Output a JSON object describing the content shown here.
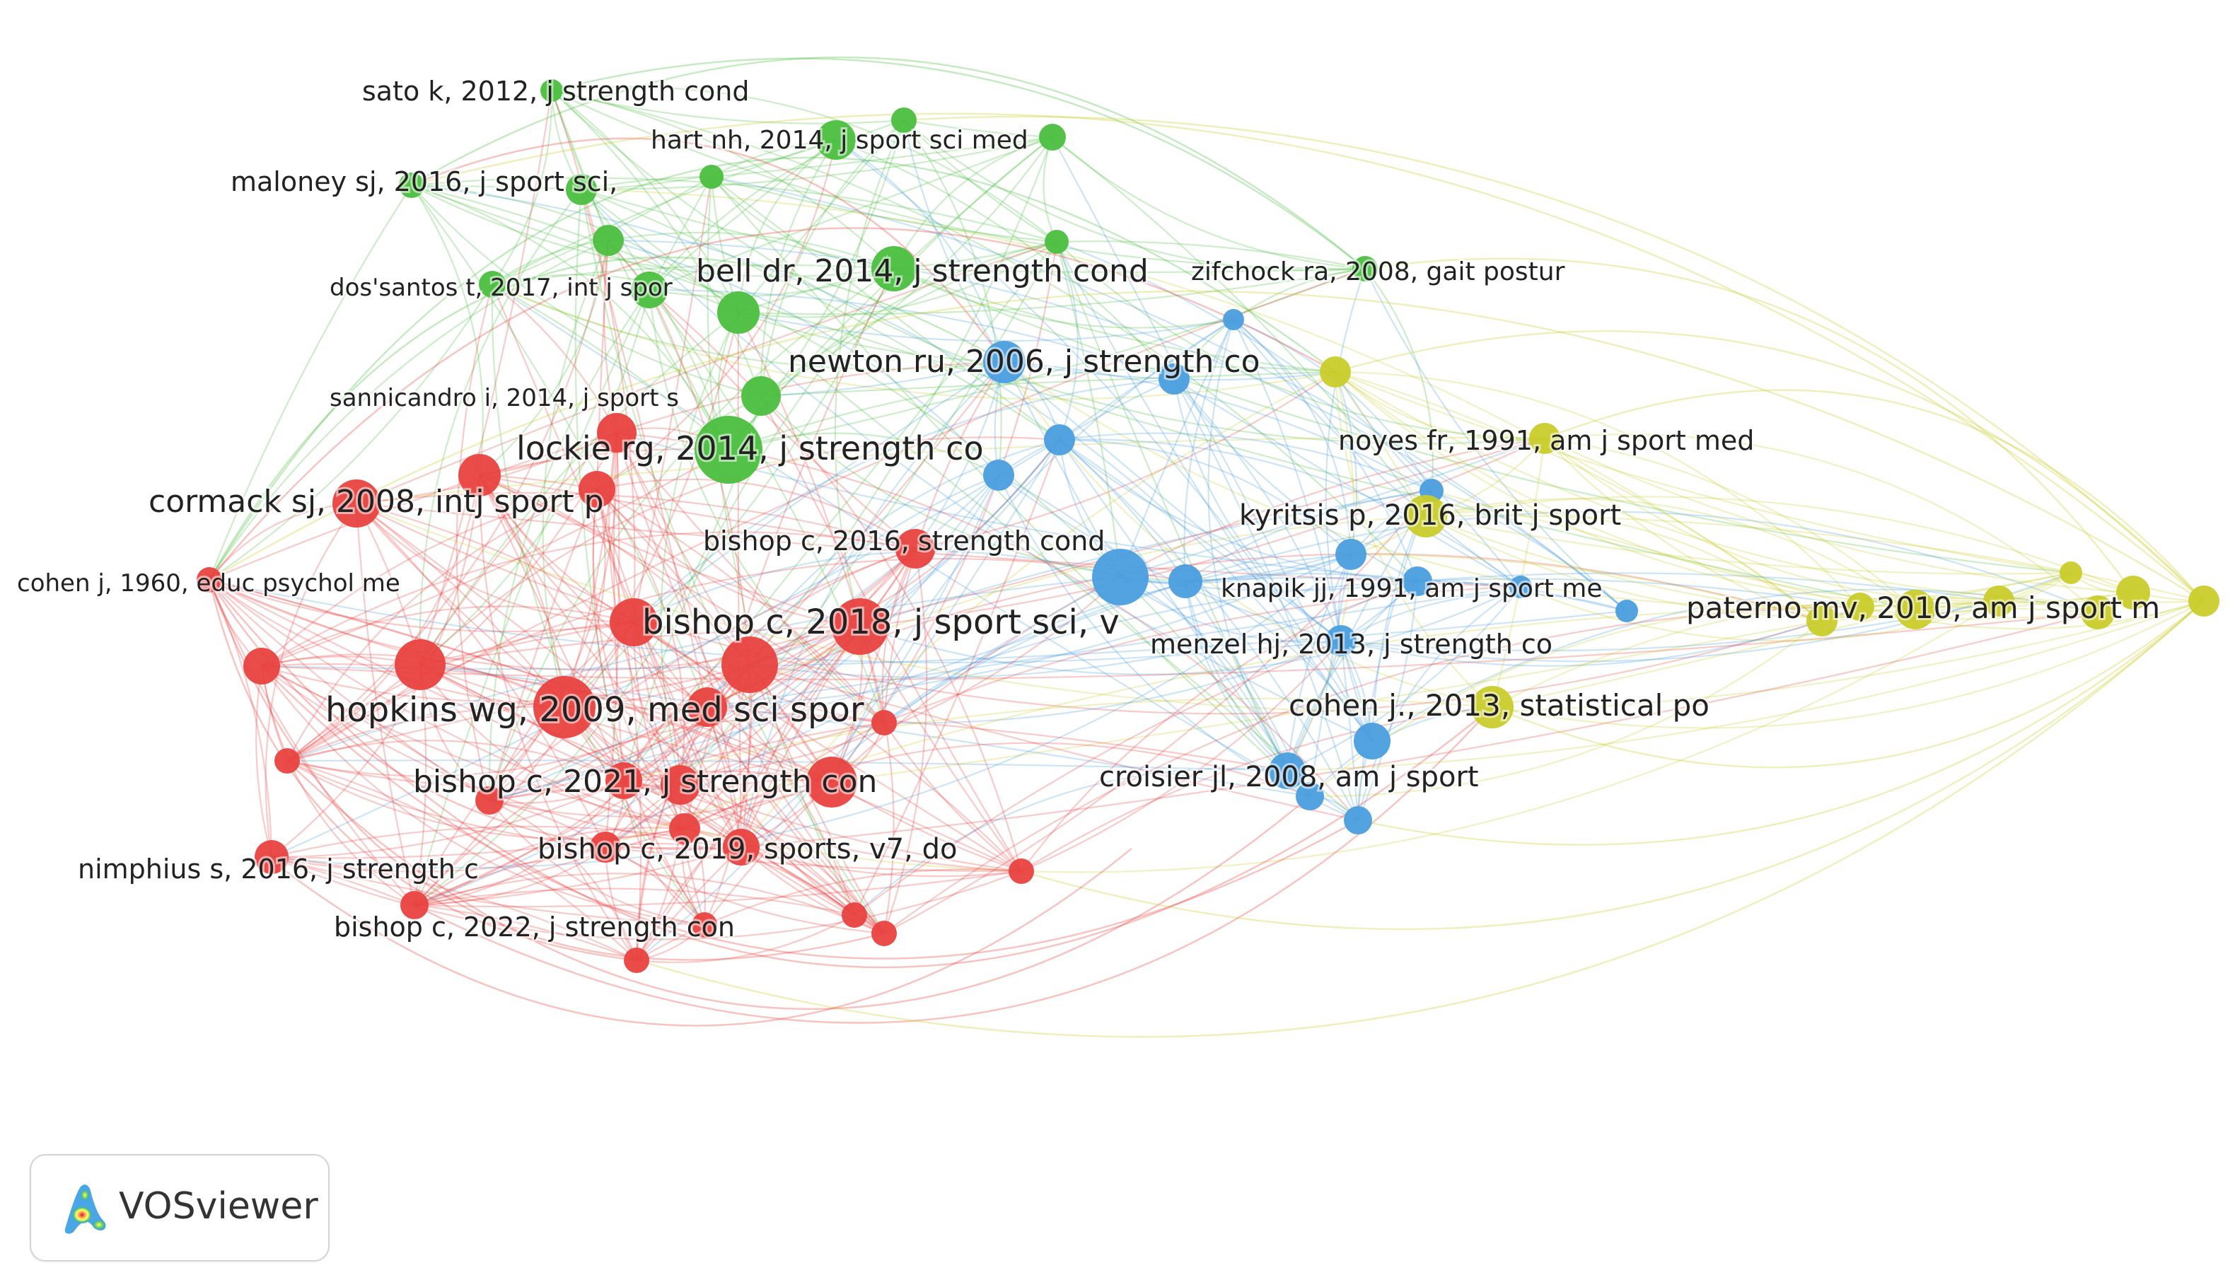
{
  "app": {
    "name": "VOSviewer"
  },
  "legend_colors": {
    "cluster_1": "#e8423f",
    "cluster_2": "#4bbf3f",
    "cluster_3": "#4a9ede",
    "cluster_4": "#c9cc2a"
  },
  "labels": [
    {
      "text": "sato k, 2012, j strength cond",
      "cluster": 2
    },
    {
      "text": "hart nh, 2014, j sport sci med",
      "cluster": 2
    },
    {
      "text": "maloney sj, 2016, j sport sci,",
      "cluster": 2
    },
    {
      "text": "dos'santos t, 2017, int j spor",
      "cluster": 2
    },
    {
      "text": "bell dr, 2014, j strength cond",
      "cluster": 2
    },
    {
      "text": "zifchock ra, 2008, gait postur",
      "cluster": 2
    },
    {
      "text": "newton ru, 2006, j strength co",
      "cluster": 3
    },
    {
      "text": "sannicandro i, 2014, j sport s",
      "cluster": 1
    },
    {
      "text": "noyes fr, 1991, am j sport med",
      "cluster": 4
    },
    {
      "text": "lockie rg, 2014, j strength co",
      "cluster": 2
    },
    {
      "text": "cormack sj, 2008, intj sport p",
      "cluster": 1
    },
    {
      "text": "kyritsis p, 2016, brit j sport",
      "cluster": 4
    },
    {
      "text": "bishop c, 2016, strength cond",
      "cluster": 1
    },
    {
      "text": "cohen j, 1960, educ psychol me",
      "cluster": 1
    },
    {
      "text": "knapik jj, 1991, am j sport me",
      "cluster": 3
    },
    {
      "text": "bishop c, 2018, j sport sci, v",
      "cluster": 1
    },
    {
      "text": "paterno mv, 2010, am j sport m",
      "cluster": 4
    },
    {
      "text": "menzel hj, 2013, j strength co",
      "cluster": 3
    },
    {
      "text": "hopkins wg, 2009, med sci spor",
      "cluster": 1
    },
    {
      "text": "cohen j., 2013, statistical po",
      "cluster": 4
    },
    {
      "text": "bishop c, 2021, j strength con",
      "cluster": 1
    },
    {
      "text": "croisier jl, 2008, am j sport",
      "cluster": 3
    },
    {
      "text": "bishop c, 2019, sports, v7, do",
      "cluster": 1
    },
    {
      "text": "nimphius s, 2016, j strength c",
      "cluster": 1
    },
    {
      "text": "bishop c, 2022, j strength con",
      "cluster": 1
    }
  ]
}
